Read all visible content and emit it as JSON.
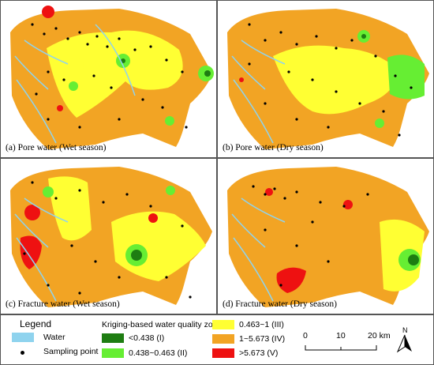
{
  "panels": [
    {
      "caption": "(a) Pore water (Wet season)"
    },
    {
      "caption": "(b) Pore water (Dry season)"
    },
    {
      "caption": "(c) Fracture water (Wet season)"
    },
    {
      "caption": "(d) Fracture water (Dry season)"
    }
  ],
  "legend": {
    "title": "Legend",
    "water_label": "Water",
    "sampling_label": "Sampling point",
    "zoning_title": "Kriging-based water quality zoning",
    "classes": [
      {
        "label": "<0.438 (I)",
        "color": "#1e7d12"
      },
      {
        "label": "0.438~0.463 (II)",
        "color": "#66ee33"
      },
      {
        "label": "0.463~1 (III)",
        "color": "#ffff33"
      },
      {
        "label": "1~5.673 (IV)",
        "color": "#f2a424"
      },
      {
        "label": ">5.673 (V)",
        "color": "#ee1111"
      }
    ],
    "water_color": "#8fd3ee",
    "scale_ticks": [
      "0",
      "10",
      "20 km"
    ],
    "north_label": "N"
  }
}
